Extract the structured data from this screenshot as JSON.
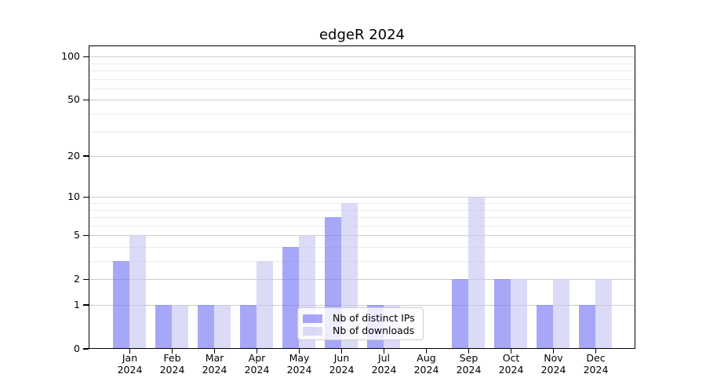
{
  "chart_data": {
    "type": "bar",
    "title": "edgeR 2024",
    "categories": [
      "Jan",
      "Feb",
      "Mar",
      "Apr",
      "May",
      "Jun",
      "Jul",
      "Aug",
      "Sep",
      "Oct",
      "Nov",
      "Dec"
    ],
    "year": "2024",
    "series": [
      {
        "name": "Nb of distinct IPs",
        "values": [
          3,
          1,
          1,
          1,
          4,
          7,
          1,
          0,
          2,
          2,
          1,
          1
        ],
        "color": "rgba(120,120,242,0.65)",
        "color_on_white": "#a7a7f7"
      },
      {
        "name": "Nb of downloads",
        "values": [
          5,
          1,
          1,
          3,
          5,
          9,
          1,
          0,
          10,
          2,
          2,
          2
        ],
        "color": "rgba(200,200,242,0.65)",
        "color_on_white": "#dbdbf8"
      }
    ],
    "y_axis": {
      "scale": "log10(1+value)",
      "tick_values": [
        100,
        50,
        20,
        10,
        5,
        2,
        1,
        0
      ],
      "minor_grid_values": [
        3,
        4,
        6,
        7,
        8,
        9,
        30,
        40,
        60,
        70,
        80,
        90
      ]
    },
    "xlabel": "",
    "ylabel": "",
    "grid": {
      "enabled": true,
      "major_color": "#cccccc",
      "minor_color": "#ebebeb"
    },
    "legend": {
      "position": "bottom-center",
      "labels": [
        "Nb of distinct IPs",
        "Nb of downloads"
      ]
    }
  },
  "figure": {
    "background": "#ffffff",
    "axis_color": "#000000",
    "text_color": "#000000"
  }
}
